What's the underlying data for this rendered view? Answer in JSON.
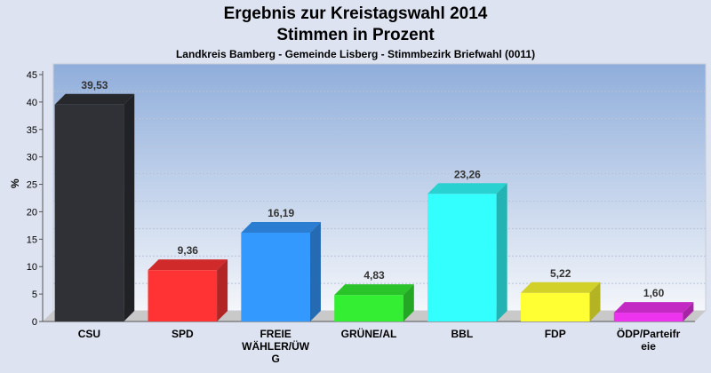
{
  "chart_data": {
    "type": "bar",
    "title_line1": "Ergebnis zur Kreistagswahl 2014",
    "title_line2": "Stimmen in Prozent",
    "subtitle": "Landkreis Bamberg - Gemeinde Lisberg - Stimmbezirk Briefwahl (0011)",
    "ylabel": "%",
    "ylim": [
      0,
      45
    ],
    "yticks": [
      0,
      5,
      10,
      15,
      20,
      25,
      30,
      35,
      40,
      45
    ],
    "categories": [
      "CSU",
      "SPD",
      "FREIE WÄHLER/ÜWG",
      "GRÜNE/AL",
      "BBL",
      "FDP",
      "ÖDP/Parteifreie"
    ],
    "category_lines": [
      [
        "CSU"
      ],
      [
        "SPD"
      ],
      [
        "FREIE",
        "WÄHLER/ÜW",
        "G"
      ],
      [
        "GRÜNE/AL"
      ],
      [
        "BBL"
      ],
      [
        "FDP"
      ],
      [
        "ÖDP/Parteifr",
        "eie"
      ]
    ],
    "values": [
      39.53,
      9.36,
      16.19,
      4.83,
      23.26,
      5.22,
      1.6
    ],
    "value_labels": [
      "39,53",
      "9,36",
      "16,19",
      "4,83",
      "23,26",
      "5,22",
      "1,60"
    ],
    "colors": [
      "#2f3136",
      "#ff3333",
      "#3399ff",
      "#33ee33",
      "#33ffff",
      "#ffff33",
      "#ee33ee"
    ],
    "grid": true,
    "legend": "none"
  }
}
